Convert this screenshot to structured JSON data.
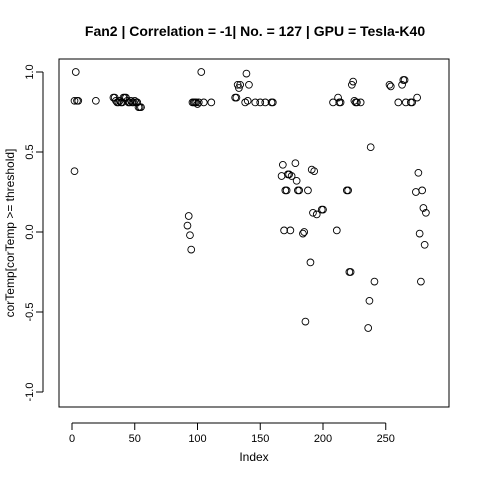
{
  "chart_data": {
    "type": "scatter",
    "title": "Fan2 | Correlation = -1| No. = 127 | GPU = Tesla-K40",
    "xlabel": "Index",
    "ylabel": "corTemp[corTemp >= threshold]",
    "xlim": [
      -5,
      290
    ],
    "ylim": [
      -1.0,
      1.0
    ],
    "x_ticks": [
      0,
      50,
      100,
      150,
      200,
      250
    ],
    "y_ticks": [
      -1.0,
      -0.5,
      0.0,
      0.5,
      1.0
    ],
    "x_tick_labels": [
      "0",
      "50",
      "100",
      "150",
      "200",
      "250"
    ],
    "y_tick_labels": [
      "-1.0",
      "-0.5",
      "0.0",
      "0.5",
      "1.0"
    ],
    "grid": false,
    "series": [
      {
        "points": [
          [
            2,
            0.82
          ],
          [
            2,
            0.38
          ],
          [
            3,
            1.0
          ],
          [
            4,
            0.82
          ],
          [
            5,
            0.82
          ],
          [
            19,
            0.82
          ],
          [
            33,
            0.84
          ],
          [
            34,
            0.84
          ],
          [
            35,
            0.82
          ],
          [
            36,
            0.81
          ],
          [
            37,
            0.81
          ],
          [
            38,
            0.82
          ],
          [
            39,
            0.81
          ],
          [
            40,
            0.81
          ],
          [
            41,
            0.84
          ],
          [
            42,
            0.84
          ],
          [
            43,
            0.84
          ],
          [
            44,
            0.82
          ],
          [
            45,
            0.81
          ],
          [
            46,
            0.81
          ],
          [
            47,
            0.82
          ],
          [
            48,
            0.81
          ],
          [
            49,
            0.81
          ],
          [
            50,
            0.82
          ],
          [
            51,
            0.81
          ],
          [
            52,
            0.81
          ],
          [
            53,
            0.78
          ],
          [
            54,
            0.78
          ],
          [
            55,
            0.78
          ],
          [
            92,
            0.04
          ],
          [
            93,
            0.1
          ],
          [
            94,
            -0.02
          ],
          [
            95,
            -0.11
          ],
          [
            96,
            0.81
          ],
          [
            97,
            0.81
          ],
          [
            98,
            0.81
          ],
          [
            99,
            0.81
          ],
          [
            100,
            0.8
          ],
          [
            101,
            0.81
          ],
          [
            103,
            1.0
          ],
          [
            105,
            0.81
          ],
          [
            111,
            0.81
          ],
          [
            130,
            0.84
          ],
          [
            131,
            0.84
          ],
          [
            132,
            0.92
          ],
          [
            133,
            0.9
          ],
          [
            134,
            0.92
          ],
          [
            138,
            0.81
          ],
          [
            139,
            0.99
          ],
          [
            140,
            0.82
          ],
          [
            141,
            0.92
          ],
          [
            146,
            0.81
          ],
          [
            150,
            0.81
          ],
          [
            154,
            0.81
          ],
          [
            159,
            0.81
          ],
          [
            160,
            0.81
          ],
          [
            167,
            0.35
          ],
          [
            168,
            0.42
          ],
          [
            169,
            0.01
          ],
          [
            170,
            0.26
          ],
          [
            171,
            0.26
          ],
          [
            172,
            0.36
          ],
          [
            173,
            0.36
          ],
          [
            174,
            0.01
          ],
          [
            175,
            0.35
          ],
          [
            178,
            0.43
          ],
          [
            179,
            0.32
          ],
          [
            180,
            0.26
          ],
          [
            181,
            0.26
          ],
          [
            184,
            -0.01
          ],
          [
            185,
            0.0
          ],
          [
            186,
            -0.56
          ],
          [
            188,
            0.26
          ],
          [
            190,
            -0.19
          ],
          [
            191,
            0.39
          ],
          [
            192,
            0.12
          ],
          [
            193,
            0.38
          ],
          [
            195,
            0.11
          ],
          [
            199,
            0.14
          ],
          [
            200,
            0.14
          ],
          [
            208,
            0.81
          ],
          [
            211,
            0.01
          ],
          [
            212,
            0.84
          ],
          [
            213,
            0.81
          ],
          [
            214,
            0.81
          ],
          [
            219,
            0.26
          ],
          [
            220,
            0.26
          ],
          [
            221,
            -0.25
          ],
          [
            222,
            -0.25
          ],
          [
            223,
            0.92
          ],
          [
            224,
            0.94
          ],
          [
            225,
            0.82
          ],
          [
            226,
            0.81
          ],
          [
            227,
            0.81
          ],
          [
            230,
            0.81
          ],
          [
            236,
            -0.6
          ],
          [
            237,
            -0.43
          ],
          [
            238,
            0.53
          ],
          [
            241,
            -0.31
          ],
          [
            253,
            0.92
          ],
          [
            254,
            0.91
          ],
          [
            260,
            0.81
          ],
          [
            263,
            0.92
          ],
          [
            264,
            0.95
          ],
          [
            265,
            0.95
          ],
          [
            266,
            0.81
          ],
          [
            270,
            0.81
          ],
          [
            271,
            0.81
          ],
          [
            274,
            0.25
          ],
          [
            275,
            0.84
          ],
          [
            276,
            0.37
          ],
          [
            277,
            -0.01
          ],
          [
            278,
            -0.31
          ],
          [
            279,
            0.26
          ],
          [
            280,
            0.15
          ],
          [
            281,
            -0.08
          ],
          [
            282,
            0.12
          ]
        ]
      }
    ]
  }
}
